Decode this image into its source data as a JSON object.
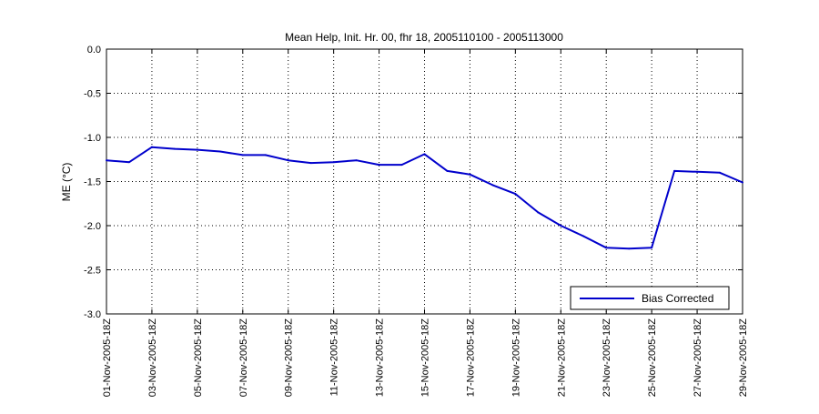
{
  "chart_data": {
    "type": "line",
    "title": "Mean Help, Init. Hr. 00, fhr 18, 2005110100 - 2005113000",
    "xlabel": "",
    "ylabel": "ME (°C)",
    "ylim": [
      -3.0,
      0.0
    ],
    "yticks": [
      0.0,
      -0.5,
      -1.0,
      -1.5,
      -2.0,
      -2.5,
      -3.0
    ],
    "ytick_labels": [
      "0.0",
      "-0.5",
      "-1.0",
      "-1.5",
      "-2.0",
      "-2.5",
      "-3.0"
    ],
    "x_range": [
      1,
      29
    ],
    "xticks": [
      1,
      3,
      5,
      7,
      9,
      11,
      13,
      15,
      17,
      19,
      21,
      23,
      25,
      27,
      29
    ],
    "xtick_labels": [
      "01-Nov-2005-18Z",
      "03-Nov-2005-18Z",
      "05-Nov-2005-18Z",
      "07-Nov-2005-18Z",
      "09-Nov-2005-18Z",
      "11-Nov-2005-18Z",
      "13-Nov-2005-18Z",
      "15-Nov-2005-18Z",
      "17-Nov-2005-18Z",
      "19-Nov-2005-18Z",
      "21-Nov-2005-18Z",
      "23-Nov-2005-18Z",
      "25-Nov-2005-18Z",
      "27-Nov-2005-18Z",
      "29-Nov-2005-18Z"
    ],
    "grid": true,
    "legend_position": "bottom-right",
    "series": [
      {
        "name": "Bias Corrected",
        "color": "#0000cc",
        "x": [
          1,
          2,
          3,
          4,
          5,
          6,
          7,
          8,
          9,
          10,
          11,
          12,
          13,
          14,
          15,
          16,
          17,
          18,
          19,
          20,
          21,
          22,
          23,
          24,
          25,
          26,
          27,
          28,
          29
        ],
        "values": [
          -1.26,
          -1.28,
          -1.11,
          -1.13,
          -1.14,
          -1.16,
          -1.2,
          -1.2,
          -1.26,
          -1.29,
          -1.28,
          -1.26,
          -1.31,
          -1.31,
          -1.19,
          -1.38,
          -1.42,
          -1.54,
          -1.64,
          -1.85,
          -2.0,
          -2.12,
          -2.25,
          -2.26,
          -2.25,
          -1.38,
          -1.39,
          -1.4,
          -1.51
        ]
      }
    ]
  }
}
